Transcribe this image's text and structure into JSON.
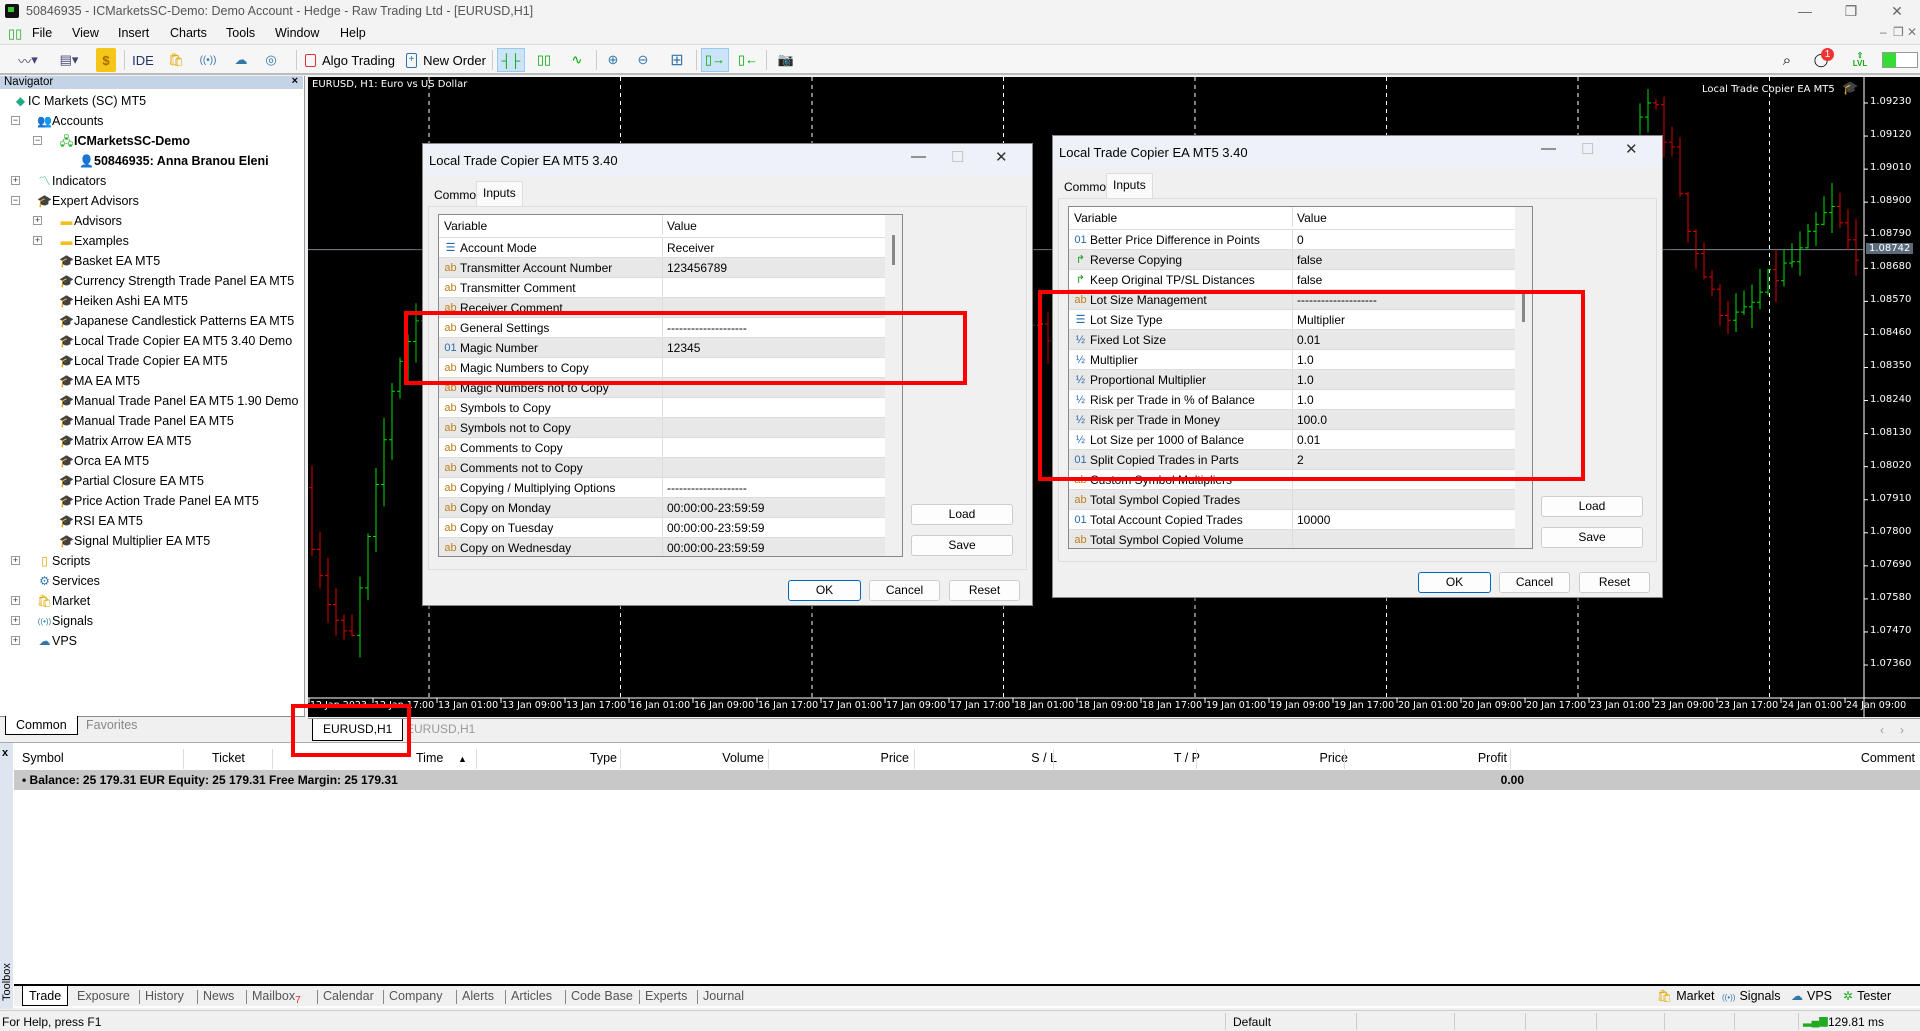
{
  "window": {
    "title": "50846935 - ICMarketsSC-Demo: Demo Account - Hedge - Raw Trading Ltd - [EURUSD,H1]",
    "minimize": "—",
    "restore": "❐",
    "close": "✕"
  },
  "menu": [
    "File",
    "View",
    "Insert",
    "Charts",
    "Tools",
    "Window",
    "Help"
  ],
  "toolbar": {
    "ide": "IDE",
    "algo_trading": "Algo Trading",
    "new_order": "New Order",
    "notifications_count": "1",
    "lvl": "LVL"
  },
  "navigator": {
    "title": "Navigator",
    "close": "×",
    "items": [
      {
        "label": "IC Markets (SC) MT5",
        "level": 0,
        "icon": "broker",
        "expander": ""
      },
      {
        "label": "Accounts",
        "level": 1,
        "icon": "accounts",
        "expander": "-"
      },
      {
        "label": "ICMarketsSC-Demo",
        "level": 2,
        "icon": "server",
        "expander": "-",
        "bold": true
      },
      {
        "label": "50846935: Anna Branou Eleni",
        "level": 3,
        "icon": "user",
        "expander": "",
        "bold": true
      },
      {
        "label": "Indicators",
        "level": 1,
        "icon": "indicators",
        "expander": "+"
      },
      {
        "label": "Expert Advisors",
        "level": 1,
        "icon": "expert",
        "expander": "-"
      },
      {
        "label": "Advisors",
        "level": 2,
        "icon": "folder",
        "expander": "+"
      },
      {
        "label": "Examples",
        "level": 2,
        "icon": "folder",
        "expander": "+"
      },
      {
        "label": "Basket EA MT5",
        "level": 2,
        "icon": "expert",
        "expander": ""
      },
      {
        "label": "Currency Strength Trade Panel EA MT5",
        "level": 2,
        "icon": "expert",
        "expander": ""
      },
      {
        "label": "Heiken Ashi EA MT5",
        "level": 2,
        "icon": "expert",
        "expander": ""
      },
      {
        "label": "Japanese Candlestick Patterns EA MT5",
        "level": 2,
        "icon": "expert",
        "expander": ""
      },
      {
        "label": "Local Trade Copier EA MT5 3.40 Demo",
        "level": 2,
        "icon": "expert",
        "expander": ""
      },
      {
        "label": "Local Trade Copier EA MT5",
        "level": 2,
        "icon": "expert",
        "expander": ""
      },
      {
        "label": "MA EA MT5",
        "level": 2,
        "icon": "expert",
        "expander": ""
      },
      {
        "label": "Manual Trade Panel EA MT5 1.90 Demo",
        "level": 2,
        "icon": "expert",
        "expander": ""
      },
      {
        "label": "Manual Trade Panel EA MT5",
        "level": 2,
        "icon": "expert",
        "expander": ""
      },
      {
        "label": "Matrix Arrow EA MT5",
        "level": 2,
        "icon": "expert",
        "expander": ""
      },
      {
        "label": "Orca EA MT5",
        "level": 2,
        "icon": "expert",
        "expander": ""
      },
      {
        "label": "Partial Closure EA MT5",
        "level": 2,
        "icon": "expert",
        "expander": ""
      },
      {
        "label": "Price Action Trade Panel EA MT5",
        "level": 2,
        "icon": "expert",
        "expander": ""
      },
      {
        "label": "RSI EA MT5",
        "level": 2,
        "icon": "expert",
        "expander": ""
      },
      {
        "label": "Signal Multiplier EA MT5",
        "level": 2,
        "icon": "expert",
        "expander": ""
      },
      {
        "label": "Scripts",
        "level": 1,
        "icon": "scripts",
        "expander": "+"
      },
      {
        "label": "Services",
        "level": 1,
        "icon": "services",
        "expander": ""
      },
      {
        "label": "Market",
        "level": 1,
        "icon": "market",
        "expander": "+"
      },
      {
        "label": "Signals",
        "level": 1,
        "icon": "signals",
        "expander": "+"
      },
      {
        "label": "VPS",
        "level": 1,
        "icon": "vps",
        "expander": "+"
      }
    ],
    "tabs": [
      "Common",
      "Favorites"
    ]
  },
  "chart": {
    "header": "EURUSD, H1:  Euro vs US Dollar",
    "ea_label": "Local Trade Copier EA MT5",
    "current_price": "1.08742",
    "price_labels": [
      "1.09230",
      "1.09120",
      "1.09010",
      "1.08900",
      "1.08790",
      "1.08680",
      "1.08570",
      "1.08460",
      "1.08350",
      "1.08240",
      "1.08130",
      "1.08020",
      "1.07910",
      "1.07800",
      "1.07690",
      "1.07580",
      "1.07470",
      "1.07360"
    ],
    "time_labels": [
      "12 Jan 2023",
      "12 Jan 17:00",
      "13 Jan 01:00",
      "13 Jan 09:00",
      "13 Jan 17:00",
      "16 Jan 01:00",
      "16 Jan 09:00",
      "16 Jan 17:00",
      "17 Jan 01:00",
      "17 Jan 09:00",
      "17 Jan 17:00",
      "18 Jan 01:00",
      "18 Jan 09:00",
      "18 Jan 17:00",
      "19 Jan 01:00",
      "19 Jan 09:00",
      "19 Jan 17:00",
      "20 Jan 01:00",
      "20 Jan 09:00",
      "20 Jan 17:00",
      "23 Jan 01:00",
      "23 Jan 09:00",
      "23 Jan 17:00",
      "24 Jan 01:00",
      "24 Jan 09:00"
    ],
    "tabs": [
      "EURUSD,H1",
      "EURUSD,H1"
    ],
    "colors": {
      "up": "#00e000",
      "down": "#e00000",
      "background": "#000000"
    }
  },
  "dialog_left": {
    "title": "Local Trade Copier EA MT5 3.40",
    "tabs": [
      "Common",
      "Inputs"
    ],
    "col_variable": "Variable",
    "col_value": "Value",
    "rows": [
      {
        "icon": "enum",
        "name": "Account Mode",
        "value": "Receiver"
      },
      {
        "icon": "ab",
        "name": "Transmitter Account Number",
        "value": "123456789"
      },
      {
        "icon": "ab",
        "name": "Transmitter Comment",
        "value": ""
      },
      {
        "icon": "ab",
        "name": "Receiver Comment",
        "value": ""
      },
      {
        "icon": "ab",
        "name": "General Settings",
        "value": "--------------------"
      },
      {
        "icon": "01",
        "name": "Magic Number",
        "value": "12345"
      },
      {
        "icon": "ab",
        "name": "Magic Numbers to Copy",
        "value": ""
      },
      {
        "icon": "ab",
        "name": "Magic Numbers not to Copy",
        "value": ""
      },
      {
        "icon": "ab",
        "name": "Symbols to Copy",
        "value": ""
      },
      {
        "icon": "ab",
        "name": "Symbols not to Copy",
        "value": ""
      },
      {
        "icon": "ab",
        "name": "Comments to Copy",
        "value": ""
      },
      {
        "icon": "ab",
        "name": "Comments not to Copy",
        "value": ""
      },
      {
        "icon": "ab",
        "name": "Copying / Multiplying Options",
        "value": "--------------------"
      },
      {
        "icon": "ab",
        "name": "Copy on Monday",
        "value": "00:00:00-23:59:59"
      },
      {
        "icon": "ab",
        "name": "Copy on Tuesday",
        "value": "00:00:00-23:59:59"
      },
      {
        "icon": "ab",
        "name": "Copy on Wednesday",
        "value": "00:00:00-23:59:59"
      }
    ],
    "load": "Load",
    "save": "Save",
    "ok": "OK",
    "cancel": "Cancel",
    "reset": "Reset"
  },
  "dialog_right": {
    "title": "Local Trade Copier EA MT5 3.40",
    "tabs": [
      "Common",
      "Inputs"
    ],
    "col_variable": "Variable",
    "col_value": "Value",
    "rows": [
      {
        "icon": "01",
        "name": "Better Price Difference in Points",
        "value": "0"
      },
      {
        "icon": "bool",
        "name": "Reverse Copying",
        "value": "false"
      },
      {
        "icon": "bool",
        "name": "Keep Original TP/SL Distances",
        "value": "false"
      },
      {
        "icon": "ab",
        "name": "Lot Size Management",
        "value": "--------------------"
      },
      {
        "icon": "enum",
        "name": "Lot Size Type",
        "value": "Multiplier"
      },
      {
        "icon": "half",
        "name": "Fixed Lot Size",
        "value": "0.01"
      },
      {
        "icon": "half",
        "name": "Multiplier",
        "value": "1.0"
      },
      {
        "icon": "half",
        "name": "Proportional Multiplier",
        "value": "1.0"
      },
      {
        "icon": "half",
        "name": "Risk per Trade in % of Balance",
        "value": "1.0"
      },
      {
        "icon": "half",
        "name": "Risk per Trade in Money",
        "value": "100.0"
      },
      {
        "icon": "half",
        "name": "Lot Size per 1000 of Balance",
        "value": "0.01"
      },
      {
        "icon": "01",
        "name": "Split Copied Trades in Parts",
        "value": "2"
      },
      {
        "icon": "ab",
        "name": "Custom Symbol Multipliers",
        "value": ""
      },
      {
        "icon": "ab",
        "name": "Total Symbol Copied Trades",
        "value": ""
      },
      {
        "icon": "01",
        "name": "Total Account Copied Trades",
        "value": "10000"
      },
      {
        "icon": "ab",
        "name": "Total Symbol Copied Volume",
        "value": ""
      }
    ],
    "load": "Load",
    "save": "Save",
    "ok": "OK",
    "cancel": "Cancel",
    "reset": "Reset"
  },
  "toolbox": {
    "side_label": "Toolbox",
    "close": "x",
    "sort_arrow": "▲",
    "columns": [
      "Symbol",
      "Ticket",
      "Time",
      "Type",
      "Volume",
      "Price",
      "S / L",
      "T / P",
      "Price",
      "Profit",
      "Comment"
    ],
    "balance_line": "Balance: 25 179.31 EUR  Equity: 25 179.31  Free Margin: 25 179.31",
    "profit_total": "0.00",
    "tabs": [
      "Trade",
      "Exposure",
      "History",
      "News",
      "Mailbox",
      "Calendar",
      "Company",
      "Alerts",
      "Articles",
      "Code Base",
      "Experts",
      "Journal"
    ],
    "mailbox_badge": "7",
    "right_buttons": [
      "Market",
      "Signals",
      "VPS",
      "Tester"
    ]
  },
  "status": {
    "help": "For Help, press F1",
    "profile": "Default",
    "ping": "129.81 ms"
  }
}
